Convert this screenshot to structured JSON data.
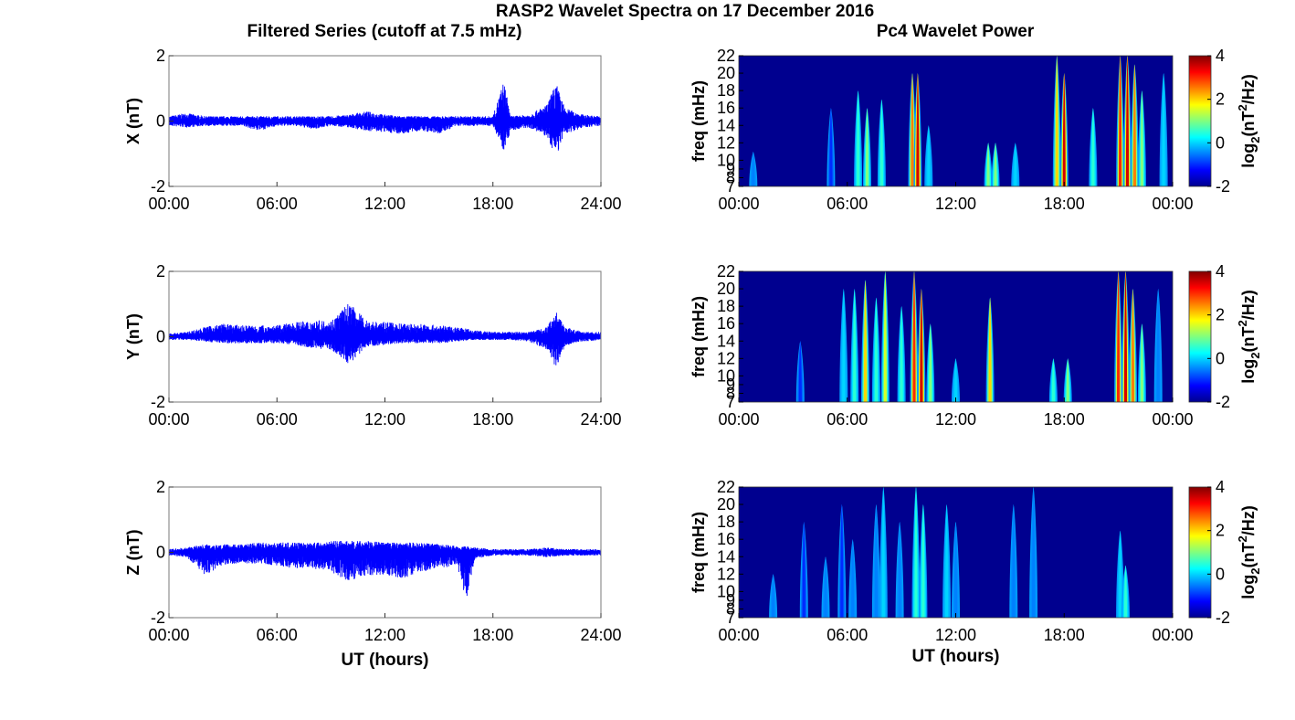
{
  "title": "RASP2 Wavelet Spectra on 17 December 2016",
  "left_title": "Filtered Series (cutoff at 7.5 mHz)",
  "right_title": "Pc4 Wavelet Power",
  "xlabel": "UT (hours)",
  "freq_label": "freq (mHz)",
  "colorbar_label_parts": [
    "log",
    "2",
    "(nT",
    "2",
    "/Hz)"
  ],
  "colors": {
    "series_line": "#0000ff",
    "heatmap_background": "#00008f"
  },
  "chart_data": [
    {
      "type": "line",
      "ylabel": "X (nT)",
      "x_range": [
        0,
        24
      ],
      "xticks": [
        "00:00",
        "06:00",
        "12:00",
        "18:00",
        "24:00"
      ],
      "ylim": [
        -2,
        2
      ],
      "yticks": [
        "-2",
        "0",
        "2"
      ],
      "grid": false,
      "series": [
        {
          "x": [
            0,
            1,
            2,
            3,
            4,
            5,
            6,
            7,
            8,
            9,
            10,
            11,
            12,
            13,
            14,
            15,
            16,
            17,
            18,
            18.6,
            19,
            20,
            21,
            21.5,
            22,
            23,
            24
          ],
          "upper": [
            0.15,
            0.25,
            0.15,
            0.15,
            0.15,
            0.15,
            0.15,
            0.15,
            0.15,
            0.15,
            0.2,
            0.3,
            0.2,
            0.15,
            0.15,
            0.15,
            0.15,
            0.15,
            0.15,
            1.25,
            0.15,
            0.2,
            0.5,
            1.2,
            0.4,
            0.2,
            0.15
          ],
          "lower": [
            -0.15,
            -0.2,
            -0.15,
            -0.15,
            -0.15,
            -0.3,
            -0.15,
            -0.15,
            -0.25,
            -0.15,
            -0.2,
            -0.3,
            -0.35,
            -0.4,
            -0.3,
            -0.4,
            -0.15,
            -0.15,
            -0.15,
            -0.9,
            -0.3,
            -0.2,
            -0.5,
            -1.1,
            -0.4,
            -0.2,
            -0.15
          ]
        }
      ]
    },
    {
      "type": "line",
      "ylabel": "Y (nT)",
      "x_range": [
        0,
        24
      ],
      "xticks": [
        "00:00",
        "06:00",
        "12:00",
        "18:00",
        "24:00"
      ],
      "ylim": [
        -2,
        2
      ],
      "yticks": [
        "-2",
        "0",
        "2"
      ],
      "grid": false,
      "series": [
        {
          "x": [
            0,
            1,
            2,
            3,
            4,
            5,
            6,
            7,
            8,
            9,
            10,
            11,
            12,
            13,
            14,
            15,
            16,
            17,
            18,
            19,
            20,
            21,
            21.5,
            22,
            23,
            24
          ],
          "upper": [
            0.1,
            0.15,
            0.3,
            0.4,
            0.35,
            0.35,
            0.35,
            0.45,
            0.5,
            0.5,
            1.05,
            0.5,
            0.45,
            0.4,
            0.4,
            0.35,
            0.3,
            0.2,
            0.15,
            0.15,
            0.15,
            0.3,
            0.8,
            0.3,
            0.15,
            0.15
          ],
          "lower": [
            -0.1,
            -0.1,
            -0.15,
            -0.2,
            -0.2,
            -0.2,
            -0.2,
            -0.25,
            -0.35,
            -0.4,
            -0.85,
            -0.3,
            -0.25,
            -0.2,
            -0.2,
            -0.2,
            -0.15,
            -0.1,
            -0.1,
            -0.1,
            -0.15,
            -0.4,
            -0.95,
            -0.3,
            -0.15,
            -0.1
          ]
        }
      ]
    },
    {
      "type": "line",
      "ylabel": "Z (nT)",
      "x_range": [
        0,
        24
      ],
      "xticks": [
        "00:00",
        "06:00",
        "12:00",
        "18:00",
        "24:00"
      ],
      "ylim": [
        -2,
        2
      ],
      "yticks": [
        "-2",
        "0",
        "2"
      ],
      "xlabel": "UT (hours)",
      "grid": false,
      "series": [
        {
          "x": [
            0,
            1,
            2,
            3,
            4,
            5,
            6,
            7,
            8,
            9,
            10,
            11,
            12,
            13,
            14,
            15,
            16,
            16.5,
            17,
            18,
            19,
            20,
            21,
            22,
            23,
            24
          ],
          "upper": [
            0.1,
            0.15,
            0.25,
            0.25,
            0.25,
            0.3,
            0.3,
            0.3,
            0.3,
            0.35,
            0.35,
            0.35,
            0.3,
            0.3,
            0.3,
            0.25,
            0.2,
            0.2,
            0.15,
            0.1,
            0.1,
            0.1,
            0.15,
            0.1,
            0.1,
            0.1
          ],
          "lower": [
            -0.1,
            -0.15,
            -0.7,
            -0.4,
            -0.35,
            -0.35,
            -0.4,
            -0.5,
            -0.5,
            -0.6,
            -0.9,
            -0.7,
            -0.7,
            -0.8,
            -0.6,
            -0.5,
            -0.4,
            -1.5,
            -0.2,
            -0.1,
            -0.1,
            -0.1,
            -0.15,
            -0.1,
            -0.1,
            -0.1
          ]
        }
      ]
    },
    {
      "type": "heatmap",
      "ylabel": "freq (mHz)",
      "x_range": [
        0,
        24
      ],
      "xticks": [
        "00:00",
        "06:00",
        "12:00",
        "18:00",
        "00:00"
      ],
      "y_range": [
        7,
        22
      ],
      "yticks": [
        "7",
        "8",
        "9",
        "10",
        "12",
        "14",
        "16",
        "18",
        "20",
        "22"
      ],
      "colorbar": {
        "range": [
          -2,
          4
        ],
        "ticks": [
          "-2",
          "0",
          "2",
          "4"
        ]
      },
      "streaks": [
        {
          "t": 0.8,
          "f_top": 11,
          "power": -0.5
        },
        {
          "t": 5.1,
          "f_top": 16,
          "power": -1
        },
        {
          "t": 6.6,
          "f_top": 18,
          "power": 0.5
        },
        {
          "t": 7.1,
          "f_top": 16,
          "power": 1
        },
        {
          "t": 7.9,
          "f_top": 17,
          "power": 0.5
        },
        {
          "t": 9.6,
          "f_top": 20,
          "power": 2.5
        },
        {
          "t": 9.9,
          "f_top": 20,
          "power": 3.5
        },
        {
          "t": 10.5,
          "f_top": 14,
          "power": 0
        },
        {
          "t": 13.8,
          "f_top": 12,
          "power": 1
        },
        {
          "t": 14.2,
          "f_top": 12,
          "power": 1
        },
        {
          "t": 15.3,
          "f_top": 12,
          "power": 0
        },
        {
          "t": 17.6,
          "f_top": 22,
          "power": 2
        },
        {
          "t": 18.0,
          "f_top": 20,
          "power": 3.5
        },
        {
          "t": 19.6,
          "f_top": 16,
          "power": 0.5
        },
        {
          "t": 21.1,
          "f_top": 22,
          "power": 3
        },
        {
          "t": 21.5,
          "f_top": 22,
          "power": 3.5
        },
        {
          "t": 21.9,
          "f_top": 21,
          "power": 2.5
        },
        {
          "t": 22.3,
          "f_top": 18,
          "power": 1
        },
        {
          "t": 23.5,
          "f_top": 20,
          "power": 0
        }
      ]
    },
    {
      "type": "heatmap",
      "ylabel": "freq (mHz)",
      "x_range": [
        0,
        24
      ],
      "xticks": [
        "00:00",
        "06:00",
        "12:00",
        "18:00",
        "00:00"
      ],
      "y_range": [
        7,
        22
      ],
      "yticks": [
        "7",
        "8",
        "9",
        "10",
        "12",
        "14",
        "16",
        "18",
        "20",
        "22"
      ],
      "colorbar": {
        "range": [
          -2,
          4
        ],
        "ticks": [
          "-2",
          "0",
          "2",
          "4"
        ]
      },
      "streaks": [
        {
          "t": 3.4,
          "f_top": 14,
          "power": -1
        },
        {
          "t": 5.8,
          "f_top": 20,
          "power": 0
        },
        {
          "t": 6.4,
          "f_top": 20,
          "power": 0.5
        },
        {
          "t": 7.0,
          "f_top": 21,
          "power": 2
        },
        {
          "t": 7.6,
          "f_top": 19,
          "power": 0.5
        },
        {
          "t": 8.1,
          "f_top": 22,
          "power": 1.5
        },
        {
          "t": 9.0,
          "f_top": 18,
          "power": 0.5
        },
        {
          "t": 9.7,
          "f_top": 22,
          "power": 3
        },
        {
          "t": 10.1,
          "f_top": 20,
          "power": 3.5
        },
        {
          "t": 10.6,
          "f_top": 16,
          "power": 1
        },
        {
          "t": 12.0,
          "f_top": 12,
          "power": 0
        },
        {
          "t": 13.9,
          "f_top": 19,
          "power": 2
        },
        {
          "t": 17.4,
          "f_top": 12,
          "power": 0.5
        },
        {
          "t": 18.2,
          "f_top": 12,
          "power": 1
        },
        {
          "t": 21.0,
          "f_top": 22,
          "power": 3
        },
        {
          "t": 21.4,
          "f_top": 22,
          "power": 3.5
        },
        {
          "t": 21.8,
          "f_top": 20,
          "power": 2.5
        },
        {
          "t": 22.3,
          "f_top": 16,
          "power": 1
        },
        {
          "t": 23.2,
          "f_top": 20,
          "power": -0.5
        }
      ]
    },
    {
      "type": "heatmap",
      "ylabel": "freq (mHz)",
      "x_range": [
        0,
        24
      ],
      "xticks": [
        "00:00",
        "06:00",
        "12:00",
        "18:00",
        "00:00"
      ],
      "xlabel": "UT (hours)",
      "y_range": [
        7,
        22
      ],
      "yticks": [
        "7",
        "8",
        "9",
        "10",
        "12",
        "14",
        "16",
        "18",
        "20",
        "22"
      ],
      "colorbar": {
        "range": [
          -2,
          4
        ],
        "ticks": [
          "-2",
          "0",
          "2",
          "4"
        ]
      },
      "streaks": [
        {
          "t": 1.9,
          "f_top": 12,
          "power": -0.5
        },
        {
          "t": 3.6,
          "f_top": 18,
          "power": -1
        },
        {
          "t": 4.8,
          "f_top": 14,
          "power": -0.5
        },
        {
          "t": 5.7,
          "f_top": 20,
          "power": -1
        },
        {
          "t": 6.3,
          "f_top": 16,
          "power": -0.5
        },
        {
          "t": 7.6,
          "f_top": 20,
          "power": -0.5
        },
        {
          "t": 8.0,
          "f_top": 22,
          "power": 0
        },
        {
          "t": 8.9,
          "f_top": 18,
          "power": -0.5
        },
        {
          "t": 9.8,
          "f_top": 22,
          "power": 0.5
        },
        {
          "t": 10.2,
          "f_top": 20,
          "power": 0.5
        },
        {
          "t": 11.5,
          "f_top": 20,
          "power": 0
        },
        {
          "t": 12.0,
          "f_top": 18,
          "power": -0.5
        },
        {
          "t": 15.2,
          "f_top": 20,
          "power": -0.5
        },
        {
          "t": 16.3,
          "f_top": 22,
          "power": -0.5
        },
        {
          "t": 21.1,
          "f_top": 17,
          "power": 0
        },
        {
          "t": 21.4,
          "f_top": 13,
          "power": 0.5
        }
      ]
    }
  ]
}
